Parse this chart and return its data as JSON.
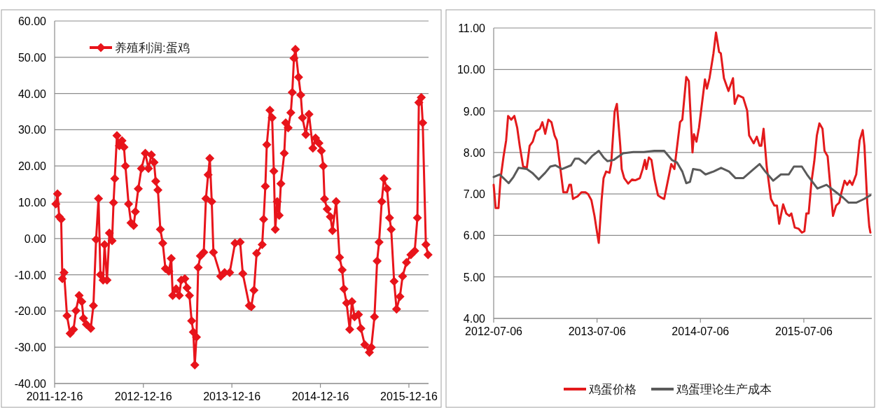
{
  "chart_data": [
    {
      "type": "line",
      "marker": "diamond",
      "grid": "y",
      "legend": "top left",
      "xlim": [
        "2011-12-16",
        "2016-03-06"
      ],
      "xticks": [
        "2011-12-16",
        "2012-12-16",
        "2013-12-16",
        "2014-12-16",
        "2015-12-16"
      ],
      "ylim": [
        -40,
        60
      ],
      "yticks": [
        {
          "value": -40,
          "label": "-40.00"
        },
        {
          "value": -30,
          "label": "-30.00"
        },
        {
          "value": -20,
          "label": "-20.00"
        },
        {
          "value": -10,
          "label": "-10.00"
        },
        {
          "value": 0,
          "label": "0.00"
        },
        {
          "value": 10,
          "label": "10.00"
        },
        {
          "value": 20,
          "label": "20.00"
        },
        {
          "value": 30,
          "label": "30.00"
        },
        {
          "value": 40,
          "label": "40.00"
        },
        {
          "value": 50,
          "label": "50.00"
        },
        {
          "value": 60,
          "label": "60.00"
        }
      ],
      "series": [
        {
          "name": "养殖利润:蛋鸡",
          "color": "#e8141b",
          "x": [
            "2011-12-21",
            "2011-12-28",
            "2012-01-04",
            "2012-01-12",
            "2012-01-17",
            "2012-01-24",
            "2012-02-05",
            "2012-02-18",
            "2012-03-03",
            "2012-03-13",
            "2012-03-26",
            "2012-04-06",
            "2012-04-13",
            "2012-04-25",
            "2012-05-13",
            "2012-05-24",
            "2012-06-04",
            "2012-06-14",
            "2012-06-22",
            "2012-07-03",
            "2012-07-09",
            "2012-07-19",
            "2012-07-29",
            "2012-08-09",
            "2012-08-15",
            "2012-08-20",
            "2012-08-29",
            "2012-09-08",
            "2012-09-19",
            "2012-09-27",
            "2012-10-03",
            "2012-10-16",
            "2012-10-26",
            "2012-11-06",
            "2012-11-13",
            "2012-11-25",
            "2012-12-08",
            "2012-12-24",
            "2013-01-06",
            "2013-01-18",
            "2013-01-29",
            "2013-02-05",
            "2013-02-14",
            "2013-02-24",
            "2013-03-06",
            "2013-03-17",
            "2013-03-31",
            "2013-04-10",
            "2013-04-16",
            "2013-04-30",
            "2013-05-13",
            "2013-05-21",
            "2013-06-05",
            "2013-06-14",
            "2013-06-24",
            "2013-07-03",
            "2013-07-10",
            "2013-07-16",
            "2013-07-23",
            "2013-07-30",
            "2013-08-08",
            "2013-08-22",
            "2013-08-31",
            "2013-09-09",
            "2013-09-16",
            "2013-09-24",
            "2013-10-01",
            "2013-10-31",
            "2013-11-16",
            "2013-12-07",
            "2013-12-29",
            "2014-01-19",
            "2014-01-30",
            "2014-02-26",
            "2014-03-06",
            "2014-03-17",
            "2014-03-28",
            "2014-04-20",
            "2014-04-26",
            "2014-05-03",
            "2014-05-09",
            "2014-05-22",
            "2014-05-31",
            "2014-06-07",
            "2014-06-13",
            "2014-06-21",
            "2014-06-29",
            "2014-07-06",
            "2014-07-20",
            "2014-07-26",
            "2014-08-05",
            "2014-08-16",
            "2014-08-22",
            "2014-08-29",
            "2014-09-04",
            "2014-09-17",
            "2014-09-26",
            "2014-10-03",
            "2014-10-17",
            "2014-10-30",
            "2014-11-15",
            "2014-11-26",
            "2014-12-10",
            "2014-12-20",
            "2014-12-28",
            "2015-01-02",
            "2015-01-13",
            "2015-01-26",
            "2015-02-04",
            "2015-02-19",
            "2015-03-05",
            "2015-03-16",
            "2015-03-23",
            "2015-04-03",
            "2015-04-16",
            "2015-04-25",
            "2015-05-06",
            "2015-05-22",
            "2015-06-01",
            "2015-06-17",
            "2015-07-06",
            "2015-07-14",
            "2015-07-27",
            "2015-08-07",
            "2015-08-15",
            "2015-08-26",
            "2015-09-04",
            "2015-09-17",
            "2015-09-27",
            "2015-10-04",
            "2015-10-16",
            "2015-10-26",
            "2015-11-09",
            "2015-11-20",
            "2015-12-06",
            "2015-12-24",
            "2016-01-09",
            "2016-01-20",
            "2016-01-26",
            "2016-02-05",
            "2016-02-11",
            "2016-02-24",
            "2016-03-04"
          ],
          "values": [
            9.5,
            12.3,
            6,
            5.3,
            -11.1,
            -9.4,
            -21.3,
            -26.2,
            -25.1,
            -19.9,
            -15.7,
            -17.4,
            -22,
            -23.7,
            -24.8,
            -18.5,
            -0.3,
            11,
            -10,
            -11.5,
            -1.7,
            -11.5,
            1.5,
            -0.6,
            9.9,
            16.5,
            28.4,
            25.6,
            27,
            25.2,
            20,
            9.5,
            4.3,
            3.6,
            7.4,
            13.7,
            19.3,
            23.5,
            19.3,
            23.1,
            21,
            15.8,
            13.4,
            2.5,
            -1.3,
            -8.3,
            -9,
            -5.5,
            -15.7,
            -13.9,
            -15.7,
            -11.5,
            -11.1,
            -13.6,
            -15.7,
            -22.7,
            -25.8,
            -34.9,
            -27.2,
            -8,
            -4.8,
            -3.8,
            11,
            17.6,
            22.1,
            10.2,
            -3.8,
            -10.4,
            -9.4,
            -9.4,
            -1.3,
            -1,
            -9.7,
            -18.5,
            -18.8,
            -14.3,
            -4.1,
            -1.7,
            5.3,
            14.4,
            25.9,
            35.4,
            33.3,
            18.6,
            2.5,
            10.2,
            6.4,
            15.1,
            23.5,
            31.9,
            30.5,
            34.7,
            40.3,
            49.7,
            52.2,
            44.5,
            39.6,
            33.3,
            28.7,
            34.3,
            24.9,
            27.7,
            26.3,
            24.2,
            20,
            10.9,
            8.1,
            6,
            2.2,
            10.2,
            -5.2,
            -8.7,
            -13.9,
            -17.8,
            -25.1,
            -17.4,
            -21.6,
            -21,
            -24.8,
            -29.3,
            -31.4,
            -30,
            -21.6,
            -6.2,
            -1,
            10.2,
            16.5,
            13.7,
            5.7,
            2.5,
            -11.8,
            -19.5,
            -16,
            -10.4,
            -6.6,
            -4.5,
            -3.4,
            5.7,
            37.5,
            38.9,
            31.9,
            -1.7,
            -4.5
          ]
        }
      ]
    },
    {
      "type": "line",
      "grid": "y",
      "legend": "bottom",
      "xlim": [
        "2012-07-06",
        "2016-03-02"
      ],
      "xticks": [
        "2012-07-06",
        "2013-07-06",
        "2014-07-06",
        "2015-07-06"
      ],
      "ylim": [
        4,
        11
      ],
      "yticks": [
        {
          "value": 4,
          "label": "4.00"
        },
        {
          "value": 5,
          "label": "5.00"
        },
        {
          "value": 6,
          "label": "6.00"
        },
        {
          "value": 7,
          "label": "7.00"
        },
        {
          "value": 8,
          "label": "8.00"
        },
        {
          "value": 9,
          "label": "9.00"
        },
        {
          "value": 10,
          "label": "10.00"
        },
        {
          "value": 11,
          "label": "11.00"
        }
      ],
      "series": [
        {
          "name": "鸡蛋价格",
          "color": "#e31a1c",
          "x": [
            "2012-07-06",
            "2012-07-13",
            "2012-07-23",
            "2012-07-30",
            "2012-08-10",
            "2012-08-19",
            "2012-08-26",
            "2012-09-06",
            "2012-09-17",
            "2012-09-27",
            "2012-10-06",
            "2012-10-18",
            "2012-10-31",
            "2012-11-10",
            "2012-11-21",
            "2012-12-02",
            "2012-12-16",
            "2012-12-25",
            "2013-01-04",
            "2013-01-15",
            "2013-01-26",
            "2013-02-06",
            "2013-02-14",
            "2013-03-09",
            "2013-03-22",
            "2013-03-30",
            "2013-04-05",
            "2013-04-12",
            "2013-04-19",
            "2013-04-28",
            "2013-05-12",
            "2013-05-26",
            "2013-06-04",
            "2013-06-16",
            "2013-06-27",
            "2013-07-04",
            "2013-07-12",
            "2013-07-22",
            "2013-07-29",
            "2013-08-07",
            "2013-08-19",
            "2013-08-25",
            "2013-09-06",
            "2013-09-14",
            "2013-09-26",
            "2013-10-01",
            "2013-10-10",
            "2013-10-24",
            "2013-11-07",
            "2013-11-18",
            "2013-12-04",
            "2013-12-14",
            "2013-12-22",
            "2013-12-27",
            "2014-01-05",
            "2014-01-14",
            "2014-01-25",
            "2014-02-06",
            "2014-02-18",
            "2014-02-28",
            "2014-03-25",
            "2014-04-05",
            "2014-04-25",
            "2014-05-03",
            "2014-05-17",
            "2014-05-26",
            "2014-06-08",
            "2014-06-13",
            "2014-06-22",
            "2014-07-01",
            "2014-07-22",
            "2014-07-29",
            "2014-08-07",
            "2014-08-21",
            "2014-08-30",
            "2014-09-10",
            "2014-09-16",
            "2014-09-27",
            "2014-10-13",
            "2014-10-29",
            "2014-11-04",
            "2014-11-16",
            "2014-12-04",
            "2014-12-18",
            "2014-12-25",
            "2015-01-10",
            "2015-01-21",
            "2015-01-31",
            "2015-02-06",
            "2015-02-14",
            "2015-02-25",
            "2015-03-12",
            "2015-03-24",
            "2015-04-02",
            "2015-04-10",
            "2015-04-24",
            "2015-05-05",
            "2015-05-16",
            "2015-05-23",
            "2015-06-04",
            "2015-06-18",
            "2015-06-29",
            "2015-07-08",
            "2015-07-15",
            "2015-07-23",
            "2015-08-02",
            "2015-08-12",
            "2015-08-21",
            "2015-08-30",
            "2015-09-10",
            "2015-09-17",
            "2015-09-28",
            "2015-10-17",
            "2015-10-28",
            "2015-11-08",
            "2015-11-16",
            "2015-11-27",
            "2015-12-06",
            "2015-12-15",
            "2015-12-24",
            "2016-01-07",
            "2016-01-19",
            "2016-01-30",
            "2016-02-05",
            "2016-02-15",
            "2016-02-22",
            "2016-02-26"
          ],
          "values": [
            7.22,
            6.66,
            6.66,
            7.35,
            7.91,
            8.29,
            8.88,
            8.79,
            8.88,
            8.6,
            8.16,
            7.66,
            7.63,
            8.16,
            8.26,
            8.51,
            8.57,
            8.73,
            8.45,
            8.79,
            8.73,
            8.41,
            8.29,
            7.04,
            7.04,
            7.22,
            7.22,
            6.88,
            6.91,
            6.94,
            7.04,
            7.04,
            7.0,
            6.85,
            6.47,
            6.16,
            5.82,
            6.85,
            7.38,
            7.54,
            7.51,
            7.73,
            8.98,
            9.17,
            8.16,
            7.6,
            7.38,
            7.25,
            7.35,
            7.33,
            7.38,
            7.6,
            7.82,
            7.6,
            7.88,
            7.82,
            7.35,
            6.97,
            6.91,
            6.88,
            7.72,
            7.6,
            8.73,
            8.79,
            9.82,
            9.72,
            8.0,
            8.44,
            8.26,
            8.6,
            9.76,
            9.54,
            9.79,
            10.39,
            10.89,
            10.42,
            10.39,
            9.79,
            9.48,
            9.79,
            9.17,
            9.38,
            9.32,
            9.01,
            8.41,
            8.22,
            8.38,
            8.16,
            8.16,
            8.57,
            7.66,
            6.88,
            6.72,
            6.72,
            6.28,
            6.75,
            6.53,
            6.47,
            6.53,
            6.19,
            6.16,
            6.07,
            6.1,
            6.53,
            6.53,
            7.29,
            7.79,
            8.41,
            8.7,
            8.57,
            8.04,
            7.91,
            6.47,
            6.72,
            6.79,
            7.04,
            7.32,
            7.22,
            7.32,
            7.22,
            7.47,
            8.29,
            8.54,
            8.16,
            6.79,
            6.22,
            6.07
          ]
        },
        {
          "name": "鸡蛋理论生产成本",
          "color": "#5a5a5a",
          "x": [
            "2012-07-06",
            "2012-07-27",
            "2012-08-10",
            "2012-08-28",
            "2012-09-14",
            "2012-10-02",
            "2012-10-31",
            "2012-11-19",
            "2012-12-12",
            "2013-01-04",
            "2013-01-22",
            "2013-02-09",
            "2013-03-04",
            "2013-04-05",
            "2013-04-19",
            "2013-05-03",
            "2013-05-26",
            "2013-06-18",
            "2013-07-12",
            "2013-07-29",
            "2013-08-12",
            "2013-09-03",
            "2013-10-06",
            "2013-11-11",
            "2013-12-18",
            "2014-01-24",
            "2014-02-28",
            "2014-03-27",
            "2014-04-14",
            "2014-05-03",
            "2014-05-17",
            "2014-05-30",
            "2014-06-10",
            "2014-07-06",
            "2014-07-24",
            "2014-08-21",
            "2014-09-17",
            "2014-10-15",
            "2014-11-07",
            "2014-12-04",
            "2015-01-05",
            "2015-01-31",
            "2015-02-20",
            "2015-03-20",
            "2015-04-16",
            "2015-05-14",
            "2015-06-01",
            "2015-06-29",
            "2015-07-17",
            "2015-08-23",
            "2015-09-24",
            "2015-10-17",
            "2015-11-22",
            "2015-12-11",
            "2016-01-07",
            "2016-02-04",
            "2016-02-26"
          ],
          "values": [
            7.41,
            7.47,
            7.38,
            7.26,
            7.41,
            7.63,
            7.6,
            7.51,
            7.35,
            7.51,
            7.66,
            7.69,
            7.6,
            7.69,
            7.85,
            7.85,
            7.73,
            7.91,
            8.04,
            7.88,
            7.79,
            7.82,
            7.98,
            8.01,
            8.01,
            8.04,
            8.04,
            7.82,
            7.76,
            7.54,
            7.26,
            7.29,
            7.6,
            7.57,
            7.47,
            7.54,
            7.63,
            7.54,
            7.38,
            7.38,
            7.57,
            7.72,
            7.54,
            7.32,
            7.47,
            7.47,
            7.66,
            7.66,
            7.47,
            7.13,
            7.22,
            7.1,
            6.91,
            6.79,
            6.79,
            6.88,
            6.97
          ]
        }
      ]
    }
  ]
}
